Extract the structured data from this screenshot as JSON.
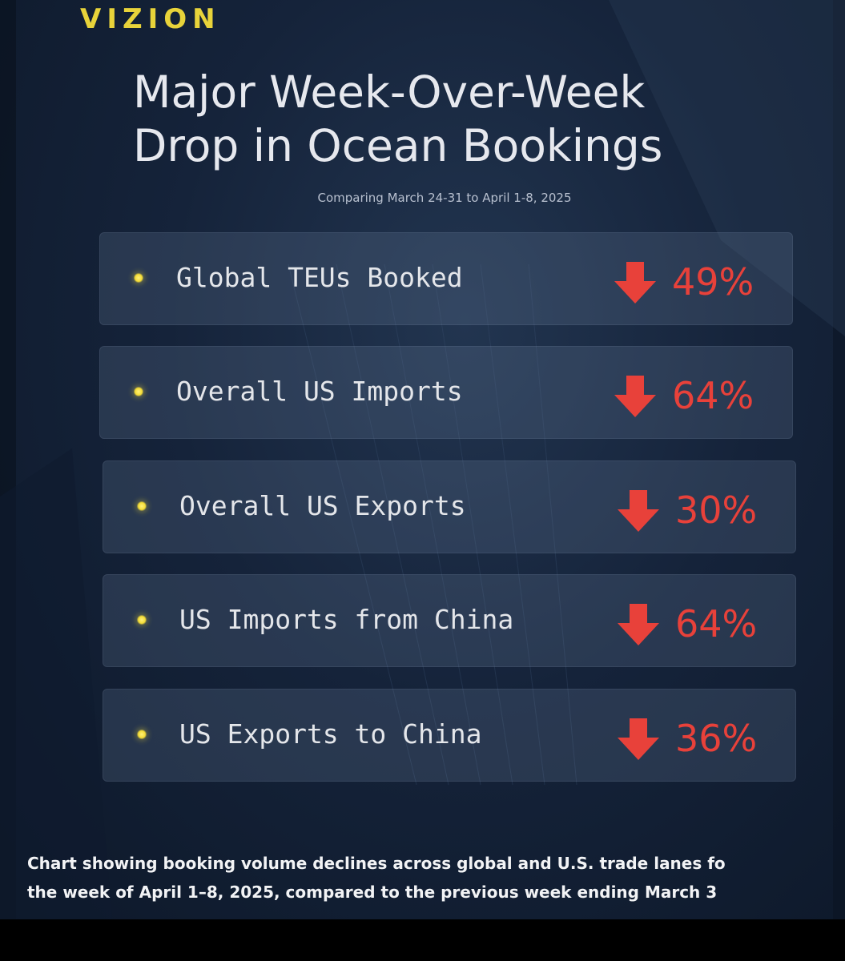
{
  "brand": "VIZION",
  "title": {
    "line1": "Major Week-Over-Week",
    "line2": "Drop in Ocean Bookings"
  },
  "subtitle": "Comparing March 24-31 to April 1-8, 2025",
  "metrics": [
    {
      "label": "Global TEUs Booked",
      "change": "49%"
    },
    {
      "label": "Overall US Imports",
      "change": "64%"
    },
    {
      "label": "Overall US Exports",
      "change": "30%"
    },
    {
      "label": "US Imports from China",
      "change": "64%"
    },
    {
      "label": "US Exports to China",
      "change": "36%"
    }
  ],
  "icons": {
    "bullet": "yellow-dot-icon",
    "trend": "arrow-down-icon"
  },
  "colors": {
    "brand": "#e8d33a",
    "decline": "#e8413a",
    "background": "#15233a"
  },
  "caption": {
    "line1": "Chart showing booking volume declines across global and U.S. trade lanes fo",
    "line2": "the week of April 1–8, 2025, compared to the previous week ending March 3"
  }
}
